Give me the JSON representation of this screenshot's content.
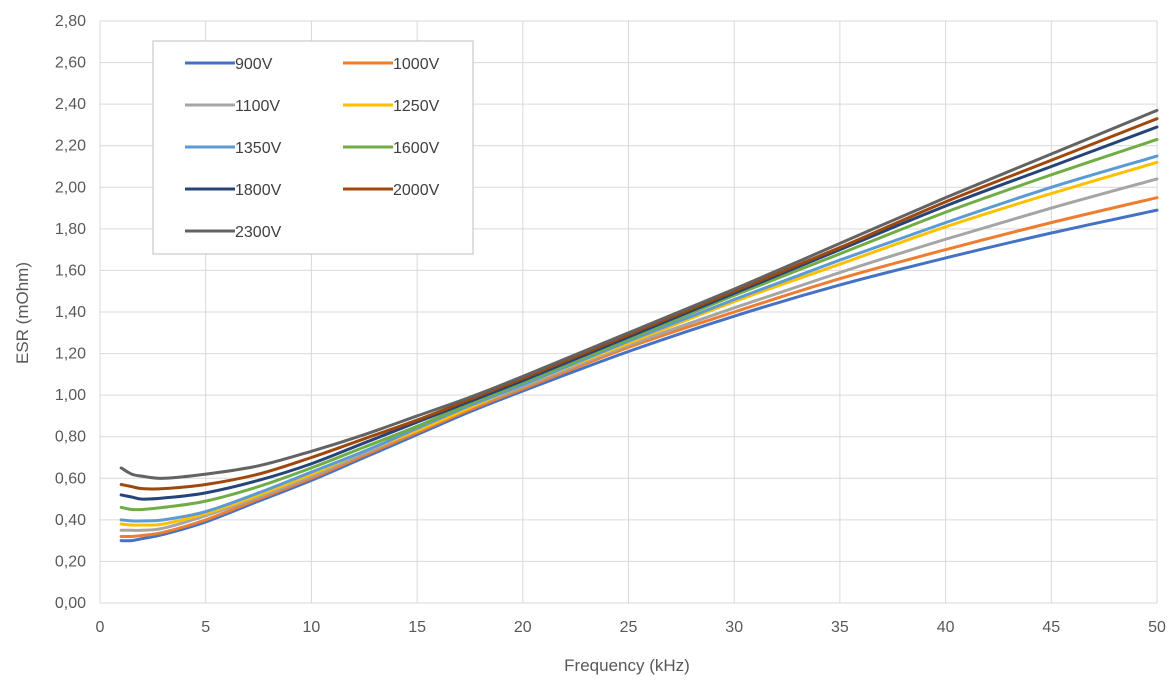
{
  "chart_data": {
    "type": "line",
    "xlabel": "Frequency (kHz)",
    "ylabel": "ESR (mOhm)",
    "xlim": [
      0,
      50
    ],
    "ylim": [
      0,
      2.8
    ],
    "x_ticks": [
      "0",
      "5",
      "10",
      "15",
      "20",
      "25",
      "30",
      "35",
      "40",
      "45",
      "50"
    ],
    "y_ticks": [
      "0,00",
      "0,20",
      "0,40",
      "0,60",
      "0,80",
      "1,00",
      "1,20",
      "1,40",
      "1,60",
      "1,80",
      "2,00",
      "2,20",
      "2,40",
      "2,60",
      "2,80"
    ],
    "grid": true,
    "legend_position": "top-left, inside plot",
    "x": [
      1,
      1.5,
      2,
      3,
      5,
      7.5,
      10,
      12.5,
      15,
      17.5,
      20,
      25,
      30,
      35,
      40,
      45,
      50
    ],
    "series": [
      {
        "name": "900V",
        "color": "#4472C4",
        "values": [
          0.3,
          0.3,
          0.31,
          0.33,
          0.39,
          0.49,
          0.59,
          0.7,
          0.81,
          0.92,
          1.02,
          1.21,
          1.38,
          1.53,
          1.66,
          1.78,
          1.89
        ]
      },
      {
        "name": "1000V",
        "color": "#ED7D31",
        "values": [
          0.32,
          0.32,
          0.325,
          0.34,
          0.4,
          0.5,
          0.6,
          0.71,
          0.82,
          0.93,
          1.03,
          1.23,
          1.4,
          1.56,
          1.7,
          1.83,
          1.95
        ]
      },
      {
        "name": "1100V",
        "color": "#A5A5A5",
        "values": [
          0.35,
          0.35,
          0.35,
          0.36,
          0.42,
          0.51,
          0.61,
          0.72,
          0.83,
          0.94,
          1.04,
          1.24,
          1.42,
          1.59,
          1.75,
          1.9,
          2.04
        ]
      },
      {
        "name": "1250V",
        "color": "#FFC000",
        "values": [
          0.38,
          0.375,
          0.375,
          0.38,
          0.43,
          0.52,
          0.62,
          0.73,
          0.83,
          0.94,
          1.05,
          1.25,
          1.45,
          1.63,
          1.81,
          1.97,
          2.12
        ]
      },
      {
        "name": "1350V",
        "color": "#5B9BD5",
        "values": [
          0.4,
          0.395,
          0.395,
          0.4,
          0.44,
          0.53,
          0.63,
          0.73,
          0.84,
          0.95,
          1.05,
          1.26,
          1.46,
          1.65,
          1.83,
          2.0,
          2.15
        ]
      },
      {
        "name": "1600V",
        "color": "#70AD47",
        "values": [
          0.46,
          0.45,
          0.45,
          0.46,
          0.49,
          0.56,
          0.65,
          0.75,
          0.85,
          0.96,
          1.06,
          1.27,
          1.48,
          1.68,
          1.88,
          2.06,
          2.23
        ]
      },
      {
        "name": "1800V",
        "color": "#264478",
        "values": [
          0.52,
          0.51,
          0.5,
          0.505,
          0.53,
          0.59,
          0.67,
          0.77,
          0.87,
          0.97,
          1.07,
          1.28,
          1.49,
          1.7,
          1.91,
          2.1,
          2.29
        ]
      },
      {
        "name": "2000V",
        "color": "#9E480E",
        "values": [
          0.57,
          0.56,
          0.55,
          0.55,
          0.57,
          0.62,
          0.7,
          0.79,
          0.88,
          0.98,
          1.08,
          1.29,
          1.5,
          1.71,
          1.93,
          2.13,
          2.33
        ]
      },
      {
        "name": "2300V",
        "color": "#636363",
        "values": [
          0.65,
          0.62,
          0.61,
          0.6,
          0.62,
          0.66,
          0.73,
          0.81,
          0.9,
          0.99,
          1.09,
          1.3,
          1.51,
          1.73,
          1.95,
          2.16,
          2.37
        ]
      }
    ]
  }
}
